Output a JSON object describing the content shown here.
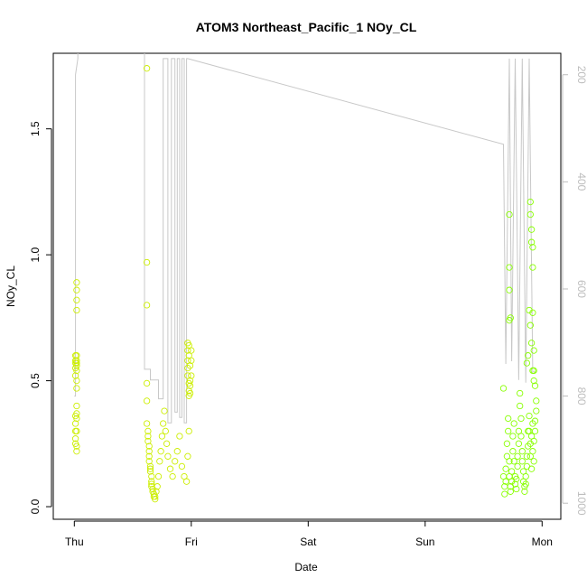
{
  "chart_data": {
    "type": "scatter",
    "title": "ATOM3 Northeast_Pacific_1 NOy_CL",
    "xlabel": "Date",
    "ylabel": "NOy_CL",
    "x_ticks": [
      "Thu",
      "Fri",
      "Sat",
      "Sun",
      "Mon"
    ],
    "xlim_days": [
      -0.18,
      4.16
    ],
    "ylim": [
      -0.05,
      1.8
    ],
    "y_ticks": [
      0.0,
      0.5,
      1.0,
      1.5
    ],
    "y_tick_labels": [
      "0.0",
      "0.5",
      "1.0",
      "1.5"
    ],
    "right_axis": {
      "reversed": true,
      "ylim": [
        1030,
        160
      ],
      "ticks": [
        200,
        400,
        600,
        800,
        1000
      ],
      "tick_labels": [
        "200",
        "400",
        "600",
        "800",
        "1000"
      ],
      "color": "#bdbdbd"
    },
    "grid": false,
    "point_colors": [
      "#ccee00",
      "#88ff00"
    ],
    "line_color": "#c8c8c8",
    "line_series": {
      "name": "",
      "x": [
        0.0,
        0.01,
        0.01,
        0.03,
        0.03,
        0.6,
        0.6,
        0.65,
        0.65,
        0.72,
        0.72,
        0.76,
        0.76,
        0.8,
        0.8,
        0.83,
        0.83,
        0.86,
        0.86,
        0.88,
        0.88,
        0.9,
        0.9,
        0.92,
        0.92,
        0.94,
        0.94,
        0.96,
        0.96,
        0.97,
        0.97,
        3.67,
        3.67,
        3.69,
        3.69,
        3.72,
        3.72,
        3.74,
        3.74,
        3.77,
        3.77,
        3.8,
        3.8,
        3.83,
        3.83,
        3.86,
        3.86,
        3.89,
        3.89,
        3.92,
        3.92,
        3.94
      ],
      "y": [
        800,
        800,
        200,
        170,
        140,
        140,
        750,
        750,
        770,
        770,
        805,
        805,
        170,
        170,
        850,
        850,
        170,
        170,
        830,
        830,
        170,
        170,
        840,
        840,
        170,
        170,
        850,
        850,
        170,
        170,
        170,
        330,
        330,
        740,
        740,
        170,
        170,
        735,
        735,
        170,
        170,
        770,
        770,
        170,
        170,
        775,
        775,
        170,
        170,
        755,
        755,
        755
      ]
    },
    "series": [
      {
        "name": "",
        "color": "#ccee00",
        "x": [
          0.01,
          0.01,
          0.01,
          0.01,
          0.01,
          0.01,
          0.01,
          0.01,
          0.01,
          0.01,
          0.02,
          0.02,
          0.02,
          0.02,
          0.02,
          0.02,
          0.02,
          0.02,
          0.02,
          0.02,
          0.02,
          0.02,
          0.02,
          0.02,
          0.02,
          0.02,
          0.02,
          0.62,
          0.62,
          0.62,
          0.62,
          0.62,
          0.62,
          0.63,
          0.63,
          0.63,
          0.64,
          0.64,
          0.64,
          0.64,
          0.65,
          0.65,
          0.65,
          0.66,
          0.66,
          0.66,
          0.66,
          0.67,
          0.67,
          0.68,
          0.68,
          0.69,
          0.69,
          0.7,
          0.71,
          0.72,
          0.73,
          0.74,
          0.75,
          0.76,
          0.77,
          0.78,
          0.79,
          0.8,
          0.82,
          0.84,
          0.86,
          0.88,
          0.9,
          0.92,
          0.94,
          0.96,
          0.97,
          0.97,
          0.97,
          0.97,
          0.97,
          0.98,
          0.98,
          0.98,
          0.98,
          0.98,
          0.99,
          0.99,
          0.99,
          0.99,
          1.0,
          1.0,
          1.0,
          0.98,
          0.97
        ],
        "y": [
          0.52,
          0.55,
          0.57,
          0.58,
          0.6,
          0.3,
          0.33,
          0.36,
          0.25,
          0.27,
          0.78,
          0.82,
          0.86,
          0.89,
          0.54,
          0.5,
          0.57,
          0.35,
          0.37,
          0.22,
          0.24,
          0.3,
          0.47,
          0.58,
          0.4,
          0.6,
          0.56,
          1.74,
          0.97,
          0.8,
          0.49,
          0.42,
          0.33,
          0.3,
          0.28,
          0.26,
          0.24,
          0.22,
          0.2,
          0.18,
          0.16,
          0.15,
          0.14,
          0.12,
          0.1,
          0.09,
          0.08,
          0.07,
          0.06,
          0.05,
          0.04,
          0.03,
          0.04,
          0.06,
          0.08,
          0.12,
          0.18,
          0.22,
          0.28,
          0.33,
          0.38,
          0.3,
          0.25,
          0.2,
          0.15,
          0.12,
          0.18,
          0.22,
          0.28,
          0.16,
          0.12,
          0.1,
          0.65,
          0.62,
          0.58,
          0.55,
          0.52,
          0.49,
          0.46,
          0.44,
          0.6,
          0.64,
          0.5,
          0.48,
          0.56,
          0.45,
          0.62,
          0.58,
          0.52,
          0.3,
          0.2
        ],
        "y_axis": "left"
      },
      {
        "name": "",
        "color": "#88ff00",
        "x": [
          3.67,
          3.67,
          3.68,
          3.68,
          3.69,
          3.69,
          3.7,
          3.7,
          3.71,
          3.71,
          3.72,
          3.72,
          3.73,
          3.73,
          3.74,
          3.74,
          3.75,
          3.75,
          3.76,
          3.76,
          3.77,
          3.77,
          3.78,
          3.78,
          3.79,
          3.79,
          3.8,
          3.8,
          3.81,
          3.81,
          3.82,
          3.82,
          3.83,
          3.83,
          3.84,
          3.84,
          3.85,
          3.85,
          3.86,
          3.86,
          3.87,
          3.87,
          3.88,
          3.88,
          3.89,
          3.89,
          3.9,
          3.9,
          3.91,
          3.91,
          3.92,
          3.92,
          3.93,
          3.93,
          3.94,
          3.94,
          3.95,
          3.95,
          3.72,
          3.72,
          3.72,
          3.72,
          3.73,
          3.9,
          3.9,
          3.91,
          3.91,
          3.92,
          3.92,
          3.92,
          3.93,
          3.93,
          3.89,
          3.9,
          3.91,
          3.92,
          3.93,
          3.94,
          3.87,
          3.88
        ],
        "y": [
          0.47,
          0.12,
          0.08,
          0.05,
          0.1,
          0.15,
          0.2,
          0.25,
          0.3,
          0.35,
          0.18,
          0.12,
          0.08,
          0.06,
          0.1,
          0.14,
          0.22,
          0.28,
          0.33,
          0.18,
          0.12,
          0.09,
          0.07,
          0.11,
          0.16,
          0.2,
          0.25,
          0.3,
          0.45,
          0.4,
          0.35,
          0.28,
          0.22,
          0.18,
          0.14,
          0.1,
          0.08,
          0.06,
          0.09,
          0.12,
          0.16,
          0.2,
          0.24,
          0.3,
          0.36,
          0.3,
          0.25,
          0.2,
          0.15,
          0.28,
          0.33,
          0.22,
          0.18,
          0.26,
          0.3,
          0.34,
          0.38,
          0.42,
          1.16,
          0.95,
          0.74,
          0.86,
          0.75,
          1.16,
          1.21,
          1.1,
          1.05,
          0.95,
          1.03,
          0.77,
          0.62,
          0.54,
          0.78,
          0.72,
          0.65,
          0.54,
          0.5,
          0.48,
          0.57,
          0.6
        ],
        "y_axis": "left"
      }
    ]
  }
}
